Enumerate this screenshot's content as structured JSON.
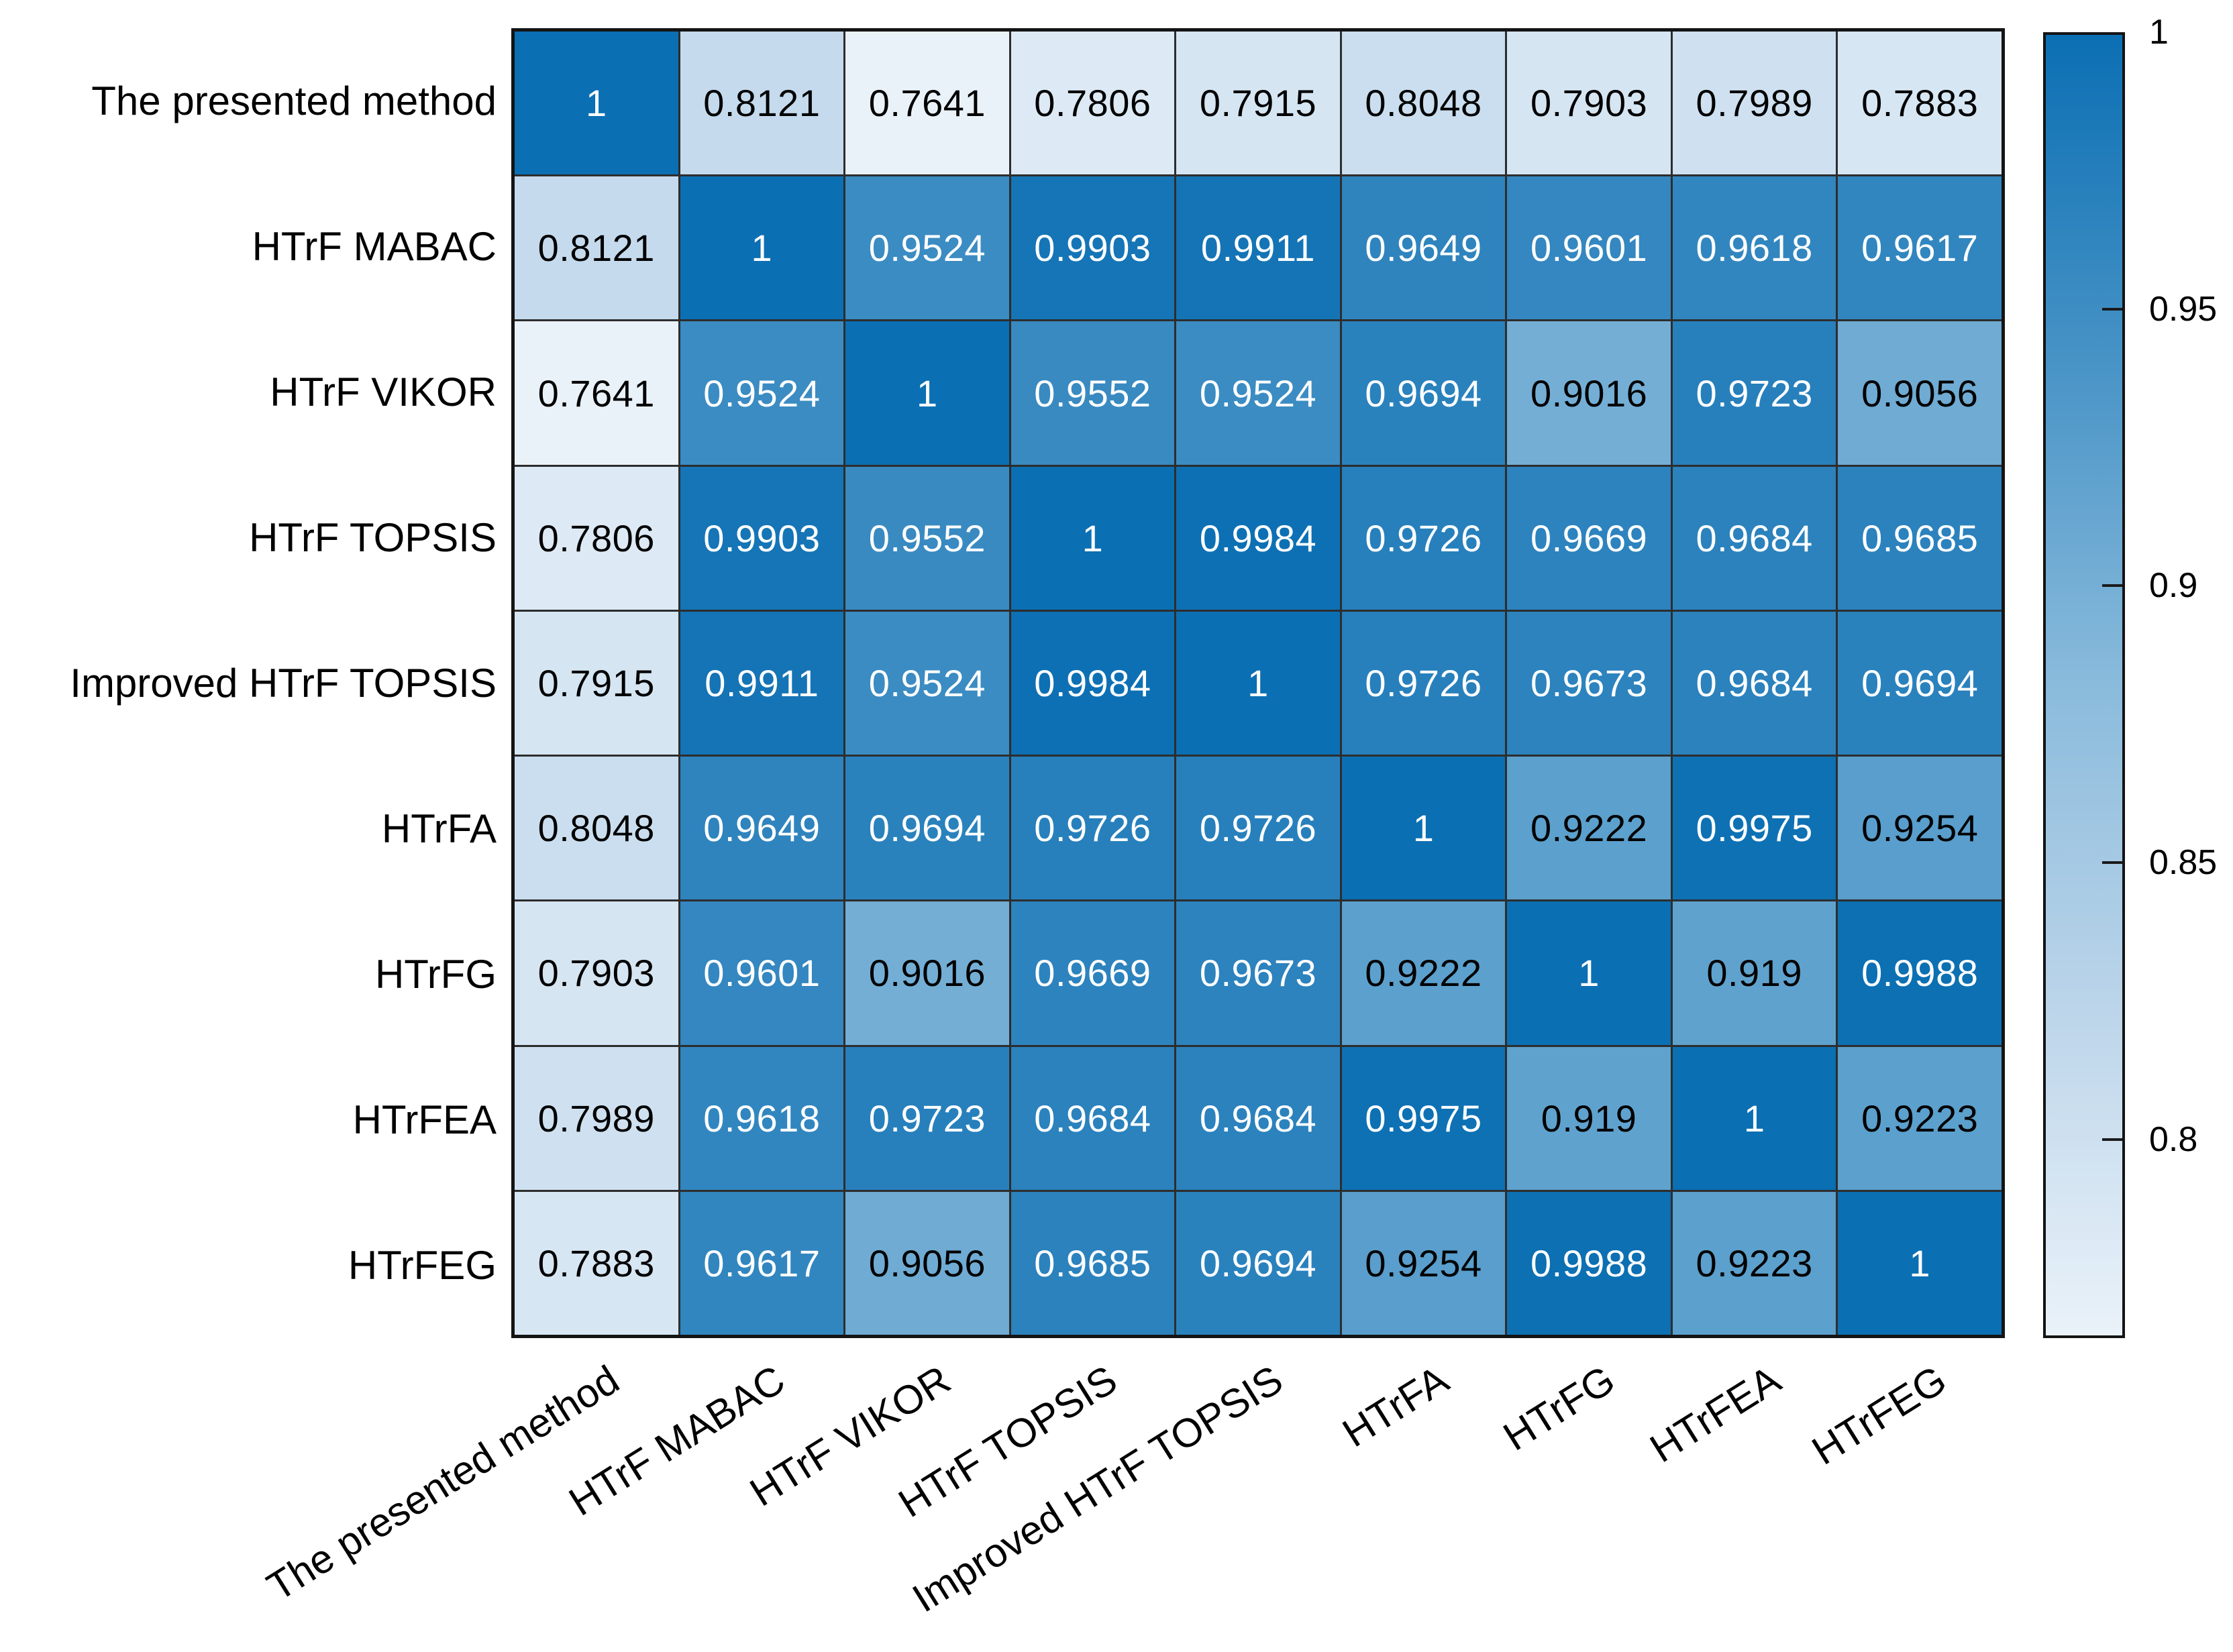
{
  "chart_data": {
    "type": "heatmap",
    "title": "",
    "xlabel": "",
    "ylabel": "",
    "categories": [
      "The presented method",
      "HTrF MABAC",
      "HTrF VIKOR",
      "HTrF TOPSIS",
      "Improved HTrF TOPSIS",
      "HTrFA",
      "HTrFG",
      "HTrFEA",
      "HTrFEG"
    ],
    "matrix": [
      [
        1,
        0.8121,
        0.7641,
        0.7806,
        0.7915,
        0.8048,
        0.7903,
        0.7989,
        0.7883
      ],
      [
        0.8121,
        1,
        0.9524,
        0.9903,
        0.9911,
        0.9649,
        0.9601,
        0.9618,
        0.9617
      ],
      [
        0.7641,
        0.9524,
        1,
        0.9552,
        0.9524,
        0.9694,
        0.9016,
        0.9723,
        0.9056
      ],
      [
        0.7806,
        0.9903,
        0.9552,
        1,
        0.9984,
        0.9726,
        0.9669,
        0.9684,
        0.9685
      ],
      [
        0.7915,
        0.9911,
        0.9524,
        0.9984,
        1,
        0.9726,
        0.9673,
        0.9684,
        0.9694
      ],
      [
        0.8048,
        0.9649,
        0.9694,
        0.9726,
        0.9726,
        1,
        0.9222,
        0.9975,
        0.9254
      ],
      [
        0.7903,
        0.9601,
        0.9016,
        0.9669,
        0.9673,
        0.9222,
        1,
        0.919,
        0.9988
      ],
      [
        0.7989,
        0.9618,
        0.9723,
        0.9684,
        0.9684,
        0.9975,
        0.919,
        1,
        0.9223
      ],
      [
        0.7883,
        0.9617,
        0.9056,
        0.9685,
        0.9694,
        0.9254,
        0.9988,
        0.9223,
        1
      ]
    ],
    "color_axis": {
      "min": 0.7641,
      "max": 1,
      "ticks": [
        1,
        0.95,
        0.9,
        0.85,
        0.8
      ],
      "tick_labels": [
        "1",
        "0.95",
        "0.9",
        "0.85",
        "0.8"
      ]
    },
    "colormap_stops": [
      "#eaf2f9",
      "#bcd5ea",
      "#8abbdc",
      "#4793c6",
      "#0b6fb3"
    ],
    "text_rule": {
      "threshold": 0.73,
      "dark": "#000000",
      "light": "#ffffff"
    },
    "grid": true,
    "grid_color": "#2d2d2d",
    "border_color": "#141414",
    "legend_position": "right",
    "background_color": "#ffffff"
  }
}
